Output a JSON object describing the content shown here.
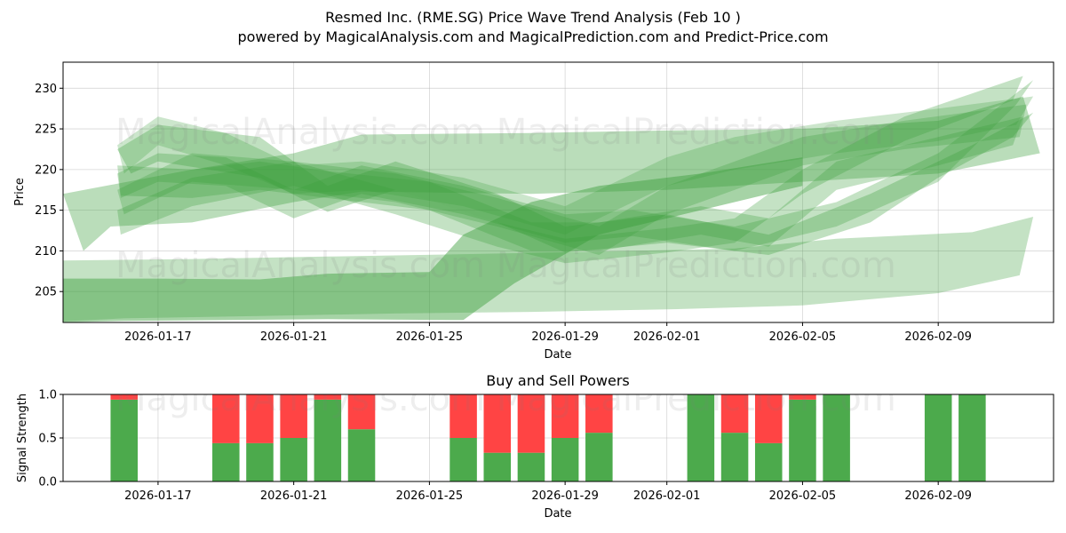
{
  "chart_data": [
    {
      "type": "area",
      "title_line1": "Resmed Inc. (RME.SG) Price Wave Trend Analysis (Feb 10 )",
      "title_line2": "powered by MagicalAnalysis.com and MagicalPrediction.com and Predict-Price.com",
      "xlabel": "Date",
      "ylabel": "Price",
      "x_range_days": [
        -0.8,
        28.4
      ],
      "ylim": [
        201.2,
        233.2
      ],
      "x_ticks": [
        {
          "day": 2,
          "label": "2026-01-17"
        },
        {
          "day": 6,
          "label": "2026-01-21"
        },
        {
          "day": 10,
          "label": "2026-01-25"
        },
        {
          "day": 14,
          "label": "2026-01-29"
        },
        {
          "day": 17,
          "label": "2026-02-01"
        },
        {
          "day": 21,
          "label": "2026-02-05"
        },
        {
          "day": 25,
          "label": "2026-02-09"
        }
      ],
      "y_ticks": [
        205,
        210,
        215,
        220,
        225,
        230
      ],
      "bands": [
        {
          "alpha": 0.3,
          "upper": [
            [
              -1.0,
              208.8
            ],
            [
              3,
              209.0
            ],
            [
              7,
              209.3
            ],
            [
              11,
              209.6
            ],
            [
              15,
              209.9
            ],
            [
              19,
              210.3
            ],
            [
              22,
              211.5
            ],
            [
              26,
              212.3
            ],
            [
              27.8,
              214.2
            ]
          ],
          "lower": [
            [
              27.4,
              207.0
            ],
            [
              25,
              204.8
            ],
            [
              21,
              203.3
            ],
            [
              17,
              202.8
            ],
            [
              13,
              202.5
            ],
            [
              9,
              202.3
            ],
            [
              5,
              202.0
            ],
            [
              1,
              201.7
            ],
            [
              -1.0,
              201.3
            ]
          ]
        },
        {
          "alpha": 0.45,
          "upper": [
            [
              -1.0,
              206.6
            ],
            [
              2,
              206.6
            ],
            [
              5,
              206.5
            ],
            [
              7,
              207.2
            ],
            [
              10,
              207.4
            ],
            [
              11,
              212.0
            ],
            [
              13,
              216.0
            ],
            [
              15,
              218.0
            ],
            [
              18,
              219.5
            ],
            [
              21,
              221.5
            ]
          ],
          "lower": [
            [
              21,
              218.0
            ],
            [
              18,
              215.0
            ],
            [
              15,
              212.0
            ],
            [
              12.5,
              206.0
            ],
            [
              11,
              201.5
            ],
            [
              7,
              201.6
            ],
            [
              4,
              201.5
            ],
            [
              1,
              201.4
            ],
            [
              -1.0,
              201.2
            ]
          ]
        },
        {
          "alpha": 0.35,
          "upper": [
            [
              -0.8,
              217.0
            ],
            [
              3,
              220.0
            ],
            [
              6,
              222.0
            ],
            [
              8,
              224.3
            ],
            [
              13,
              224.5
            ],
            [
              17,
              224.8
            ],
            [
              21,
              225.0
            ],
            [
              25,
              226.0
            ],
            [
              27.5,
              229.0
            ]
          ],
          "lower": [
            [
              28,
              222.0
            ],
            [
              25,
              219.5
            ],
            [
              21,
              218.5
            ],
            [
              17,
              217.5
            ],
            [
              13,
              217.0
            ],
            [
              8,
              217.3
            ],
            [
              6,
              216.0
            ],
            [
              3,
              213.5
            ],
            [
              0.6,
              213.0
            ],
            [
              -0.2,
              210.0
            ]
          ]
        },
        {
          "alpha": 0.32,
          "upper": [
            [
              0.8,
              222.5
            ],
            [
              2,
              225.5
            ],
            [
              5,
              224.0
            ],
            [
              7,
              218.0
            ],
            [
              9,
              221.0
            ],
            [
              12,
              217.0
            ],
            [
              14,
              213.0
            ],
            [
              17,
              214.5
            ],
            [
              20,
              212.0
            ],
            [
              23,
              217.0
            ],
            [
              26,
              223.0
            ],
            [
              27.8,
              227.0
            ]
          ],
          "lower": [
            [
              27.2,
              224.0
            ],
            [
              25,
              219.0
            ],
            [
              23,
              213.5
            ],
            [
              20,
              209.5
            ],
            [
              17,
              211.0
            ],
            [
              14,
              209.8
            ],
            [
              12,
              213.5
            ],
            [
              9,
              217.5
            ],
            [
              7,
              214.8
            ],
            [
              5,
              219.0
            ],
            [
              2,
              221.0
            ],
            [
              1.2,
              219.5
            ]
          ]
        },
        {
          "alpha": 0.3,
          "upper": [
            [
              0.8,
              219.5
            ],
            [
              2,
              222.0
            ],
            [
              4,
              221.5
            ],
            [
              6,
              217.5
            ],
            [
              8,
              220.5
            ],
            [
              11,
              218.0
            ],
            [
              14,
              214.5
            ],
            [
              16,
              215.0
            ],
            [
              19,
              213.0
            ],
            [
              22,
              216.0
            ],
            [
              25,
              222.0
            ],
            [
              27.8,
              231.0
            ]
          ],
          "lower": [
            [
              27.3,
              228.0
            ],
            [
              25,
              218.5
            ],
            [
              22,
              213.0
            ],
            [
              19,
              210.0
            ],
            [
              16,
              211.8
            ],
            [
              14,
              211.0
            ],
            [
              11,
              214.5
            ],
            [
              8,
              217.0
            ],
            [
              6,
              214.0
            ],
            [
              4,
              218.0
            ],
            [
              2,
              218.5
            ],
            [
              0.9,
              216.5
            ]
          ]
        },
        {
          "alpha": 0.3,
          "upper": [
            [
              0.8,
              215.0
            ],
            [
              3,
              219.0
            ],
            [
              6,
              221.0
            ],
            [
              9,
              217.5
            ],
            [
              12,
              213.5
            ],
            [
              14,
              211.5
            ],
            [
              17,
              212.8
            ],
            [
              19,
              214.0
            ],
            [
              21,
              220.0
            ],
            [
              24,
              226.5
            ],
            [
              27.5,
              231.5
            ]
          ],
          "lower": [
            [
              27.2,
              228.5
            ],
            [
              24,
              223.5
            ],
            [
              21,
              217.0
            ],
            [
              19,
              211.0
            ],
            [
              17,
              209.8
            ],
            [
              14,
              208.5
            ],
            [
              12,
              210.5
            ],
            [
              9,
              214.5
            ],
            [
              6,
              218.0
            ],
            [
              3,
              215.5
            ],
            [
              0.9,
              212.0
            ]
          ]
        },
        {
          "alpha": 0.3,
          "upper": [
            [
              0.8,
              220.5
            ],
            [
              3,
              220.0
            ],
            [
              5,
              221.0
            ],
            [
              7,
              219.8
            ],
            [
              10,
              218.5
            ],
            [
              13,
              213.5
            ],
            [
              15,
              213.5
            ],
            [
              18,
              215.5
            ],
            [
              20,
              214.0
            ],
            [
              22,
              221.0
            ],
            [
              25,
              224.0
            ],
            [
              27.5,
              226.5
            ]
          ],
          "lower": [
            [
              27.2,
              223.0
            ],
            [
              25,
              220.5
            ],
            [
              22,
              217.5
            ],
            [
              20,
              210.5
            ],
            [
              18,
              212.0
            ],
            [
              15,
              210.0
            ],
            [
              13,
              210.0
            ],
            [
              10,
              215.0
            ],
            [
              7,
              216.5
            ],
            [
              5,
              217.5
            ],
            [
              3,
              216.5
            ],
            [
              0.9,
              216.8
            ]
          ]
        },
        {
          "alpha": 0.28,
          "upper": [
            [
              0.8,
              217.5
            ],
            [
              3,
              222.0
            ],
            [
              6,
              221.0
            ],
            [
              9,
              219.5
            ],
            [
              12,
              216.5
            ],
            [
              15,
              213.0
            ],
            [
              17,
              218.0
            ],
            [
              19,
              221.0
            ],
            [
              21,
              224.0
            ],
            [
              24,
              226.0
            ],
            [
              27.6,
              228.0
            ]
          ],
          "lower": [
            [
              27.4,
              224.0
            ],
            [
              24,
              222.5
            ],
            [
              21,
              220.5
            ],
            [
              19,
              217.5
            ],
            [
              17,
              214.5
            ],
            [
              15,
              209.5
            ],
            [
              12,
              213.0
            ],
            [
              9,
              216.0
            ],
            [
              6,
              217.5
            ],
            [
              3,
              218.5
            ],
            [
              1,
              214.5
            ]
          ]
        },
        {
          "alpha": 0.26,
          "upper": [
            [
              0.8,
              223.0
            ],
            [
              2,
              226.5
            ],
            [
              4,
              224.5
            ],
            [
              6,
              220.5
            ],
            [
              8,
              221.0
            ],
            [
              11,
              219.0
            ],
            [
              14,
              215.5
            ],
            [
              17,
              221.5
            ],
            [
              19,
              224.0
            ],
            [
              22,
              226.0
            ],
            [
              25,
              227.5
            ],
            [
              27.8,
              229.0
            ]
          ],
          "lower": [
            [
              27.3,
              225.5
            ],
            [
              25,
              223.5
            ],
            [
              22,
              222.0
            ],
            [
              19,
              220.0
            ],
            [
              17,
              218.0
            ],
            [
              14,
              212.0
            ],
            [
              11,
              215.5
            ],
            [
              8,
              217.5
            ],
            [
              6,
              217.0
            ],
            [
              4,
              220.5
            ],
            [
              2,
              223.0
            ],
            [
              1,
              219.5
            ]
          ]
        }
      ]
    },
    {
      "type": "bar",
      "title": "Buy and Sell Powers",
      "xlabel": "Date",
      "ylabel": "Signal Strength",
      "x_range_days": [
        -0.8,
        28.4
      ],
      "ylim": [
        0,
        1
      ],
      "y_ticks": [
        "0.0",
        "0.5",
        "1.0"
      ],
      "x_ticks": [
        {
          "day": 2,
          "label": "2026-01-17"
        },
        {
          "day": 6,
          "label": "2026-01-21"
        },
        {
          "day": 10,
          "label": "2026-01-25"
        },
        {
          "day": 14,
          "label": "2026-01-29"
        },
        {
          "day": 17,
          "label": "2026-02-01"
        },
        {
          "day": 21,
          "label": "2026-02-05"
        },
        {
          "day": 25,
          "label": "2026-02-09"
        }
      ],
      "buy_color": "#4caa4c",
      "sell_color": "#ff4444",
      "bars": [
        {
          "day": 1,
          "buy": 0.94
        },
        {
          "day": 4,
          "buy": 0.44
        },
        {
          "day": 5,
          "buy": 0.44
        },
        {
          "day": 6,
          "buy": 0.5
        },
        {
          "day": 7,
          "buy": 0.94
        },
        {
          "day": 8,
          "buy": 0.6
        },
        {
          "day": 11,
          "buy": 0.5
        },
        {
          "day": 12,
          "buy": 0.33
        },
        {
          "day": 13,
          "buy": 0.33
        },
        {
          "day": 14,
          "buy": 0.5
        },
        {
          "day": 15,
          "buy": 0.56
        },
        {
          "day": 18,
          "buy": 1.0
        },
        {
          "day": 19,
          "buy": 0.56
        },
        {
          "day": 20,
          "buy": 0.44
        },
        {
          "day": 21,
          "buy": 0.94
        },
        {
          "day": 22,
          "buy": 1.0
        },
        {
          "day": 25,
          "buy": 1.0
        },
        {
          "day": 26,
          "buy": 1.0
        }
      ]
    }
  ],
  "watermark": "MagicalAnalysis.com   MagicalPrediction.com",
  "band_color": "#3a9e3a"
}
